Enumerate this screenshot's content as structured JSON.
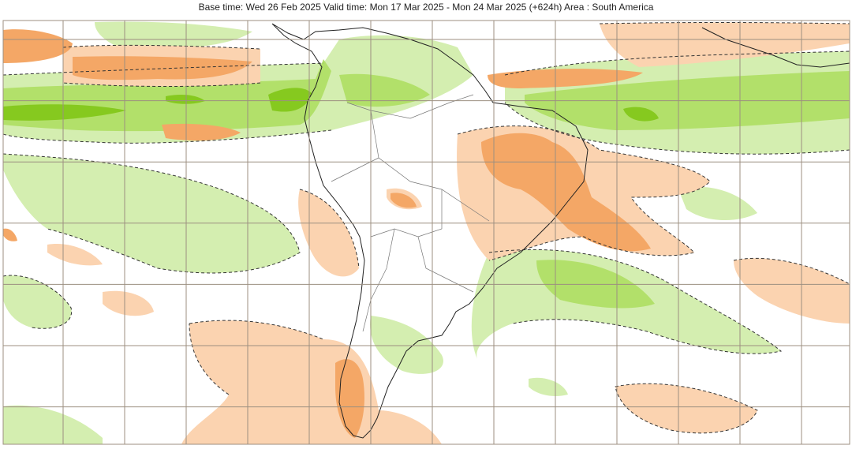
{
  "header": {
    "title": "Base time: Wed 26 Feb 2025 Valid time: Mon 17 Mar 2025 - Mon 24 Mar 2025 (+624h) Area : South America"
  }
}
